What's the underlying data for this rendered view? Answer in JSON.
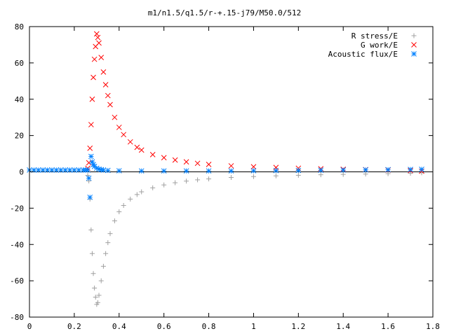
{
  "chart_data": {
    "type": "scatter",
    "title": "m1/n1.5/q1.5/r-+.15-j79/M50.0/512",
    "xlabel": "",
    "ylabel": "",
    "xlim": [
      0,
      1.8
    ],
    "ylim": [
      -80,
      80
    ],
    "x_ticks": [
      0,
      0.2,
      0.4,
      0.6,
      0.8,
      1.0,
      1.2,
      1.4,
      1.6,
      1.8
    ],
    "x_tick_labels": [
      "0",
      "0.2",
      "0.4",
      "0.6",
      "0.8",
      "1",
      "1.2",
      "1.4",
      "1.6",
      "1.8"
    ],
    "y_ticks": [
      -80,
      -60,
      -40,
      -20,
      0,
      20,
      40,
      60,
      80
    ],
    "y_tick_labels": [
      "-80",
      "-60",
      "-40",
      "-20",
      "0",
      "20",
      "40",
      "60",
      "80"
    ],
    "grid": false,
    "legend_position": "top-right",
    "series": [
      {
        "name": "R stress/E",
        "marker": "plus",
        "color": "#a0a0a0",
        "x": [
          0.26,
          0.265,
          0.27,
          0.275,
          0.28,
          0.285,
          0.29,
          0.295,
          0.3,
          0.305,
          0.31,
          0.32,
          0.33,
          0.34,
          0.35,
          0.36,
          0.38,
          0.4,
          0.42,
          0.45,
          0.48,
          0.5,
          0.55,
          0.6,
          0.65,
          0.7,
          0.75,
          0.8,
          0.9,
          1.0,
          1.1,
          1.2,
          1.3,
          1.4,
          1.5,
          1.6,
          1.7,
          1.75
        ],
        "y": [
          -2,
          -5,
          -15,
          -32,
          -45,
          -56,
          -64,
          -69,
          -73,
          -72,
          -68,
          -60,
          -52,
          -45,
          -39,
          -34,
          -27,
          -22,
          -18.5,
          -15,
          -12.5,
          -11,
          -8.8,
          -7.2,
          -6,
          -5.1,
          -4.4,
          -3.9,
          -3.1,
          -2.6,
          -2.2,
          -1.9,
          -1.6,
          -1.4,
          -1.2,
          -1.0,
          -0.8,
          -0.5
        ]
      },
      {
        "name": "G work/E",
        "marker": "cross",
        "color": "#ff0000",
        "x": [
          0.26,
          0.265,
          0.27,
          0.275,
          0.28,
          0.285,
          0.29,
          0.295,
          0.3,
          0.305,
          0.31,
          0.32,
          0.33,
          0.34,
          0.35,
          0.36,
          0.38,
          0.4,
          0.42,
          0.45,
          0.48,
          0.5,
          0.55,
          0.6,
          0.65,
          0.7,
          0.75,
          0.8,
          0.9,
          1.0,
          1.1,
          1.2,
          1.3,
          1.4,
          1.5,
          1.6,
          1.7,
          1.75
        ],
        "y": [
          2,
          5,
          13,
          26,
          40,
          52,
          62,
          69,
          76,
          74,
          71,
          63,
          55,
          48,
          42,
          37,
          30,
          24.5,
          20.5,
          16.5,
          13.5,
          12,
          9.5,
          7.8,
          6.5,
          5.5,
          4.7,
          4.1,
          3.3,
          2.8,
          2.4,
          2.0,
          1.7,
          1.4,
          1.2,
          1.0,
          0.7,
          0.4
        ]
      },
      {
        "name": "Acoustic flux/E",
        "marker": "star",
        "color": "#0080ff",
        "x": [
          0,
          0.02,
          0.04,
          0.06,
          0.08,
          0.1,
          0.12,
          0.14,
          0.16,
          0.18,
          0.2,
          0.22,
          0.24,
          0.25,
          0.26,
          0.265,
          0.27,
          0.275,
          0.28,
          0.285,
          0.29,
          0.3,
          0.31,
          0.32,
          0.33,
          0.35,
          0.4,
          0.5,
          0.6,
          0.7,
          0.8,
          0.9,
          1.0,
          1.1,
          1.2,
          1.3,
          1.4,
          1.5,
          1.6,
          1.7,
          1.75
        ],
        "y": [
          1,
          1,
          1,
          1,
          1,
          1,
          1,
          1,
          1,
          1,
          1,
          1,
          1,
          1,
          1,
          -3.5,
          -14,
          8.5,
          5.5,
          4,
          3,
          2,
          1.5,
          1.2,
          1,
          0.8,
          0.6,
          0.5,
          0.5,
          0.5,
          0.5,
          0.5,
          0.6,
          0.7,
          0.8,
          0.9,
          1,
          1.1,
          1.2,
          1.3,
          1.4
        ]
      }
    ]
  }
}
